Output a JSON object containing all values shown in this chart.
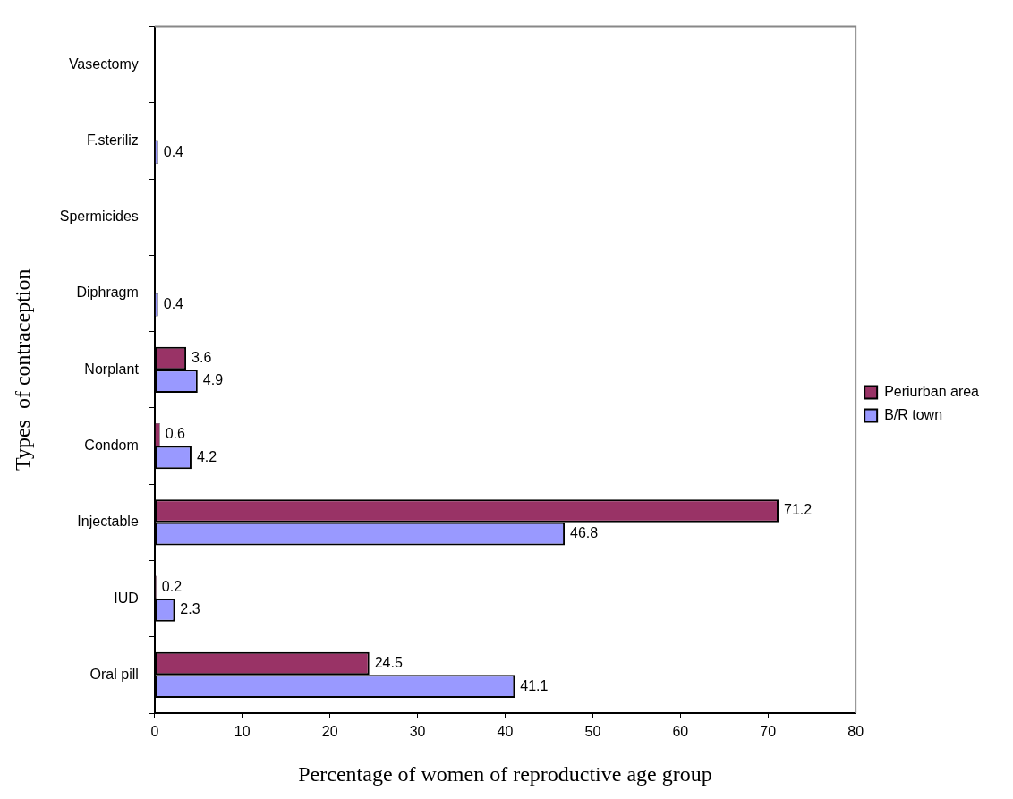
{
  "chart_data": {
    "type": "bar",
    "orientation": "horizontal",
    "xlabel": "Percentage of women of reproductive age group",
    "ylabel": "Types  of contraception",
    "categories": [
      "Vasectomy",
      "F.steriliz",
      "Spermicides",
      "Diphragm",
      "Norplant",
      "Condom",
      "Injectable",
      "IUD",
      "Oral pill"
    ],
    "series": [
      {
        "name": "Periurban area",
        "color": "#993366",
        "values": [
          null,
          null,
          null,
          null,
          3.6,
          0.6,
          71.2,
          0.2,
          24.5
        ]
      },
      {
        "name": "B/R town",
        "color": "#9999ff",
        "values": [
          null,
          0.4,
          null,
          0.4,
          4.9,
          4.2,
          46.8,
          2.3,
          41.1
        ]
      }
    ],
    "xlim": [
      0,
      80
    ],
    "xticks": [
      0,
      10,
      20,
      30,
      40,
      50,
      60,
      70,
      80
    ],
    "grid": false,
    "legend": "right",
    "data_labels": true
  }
}
